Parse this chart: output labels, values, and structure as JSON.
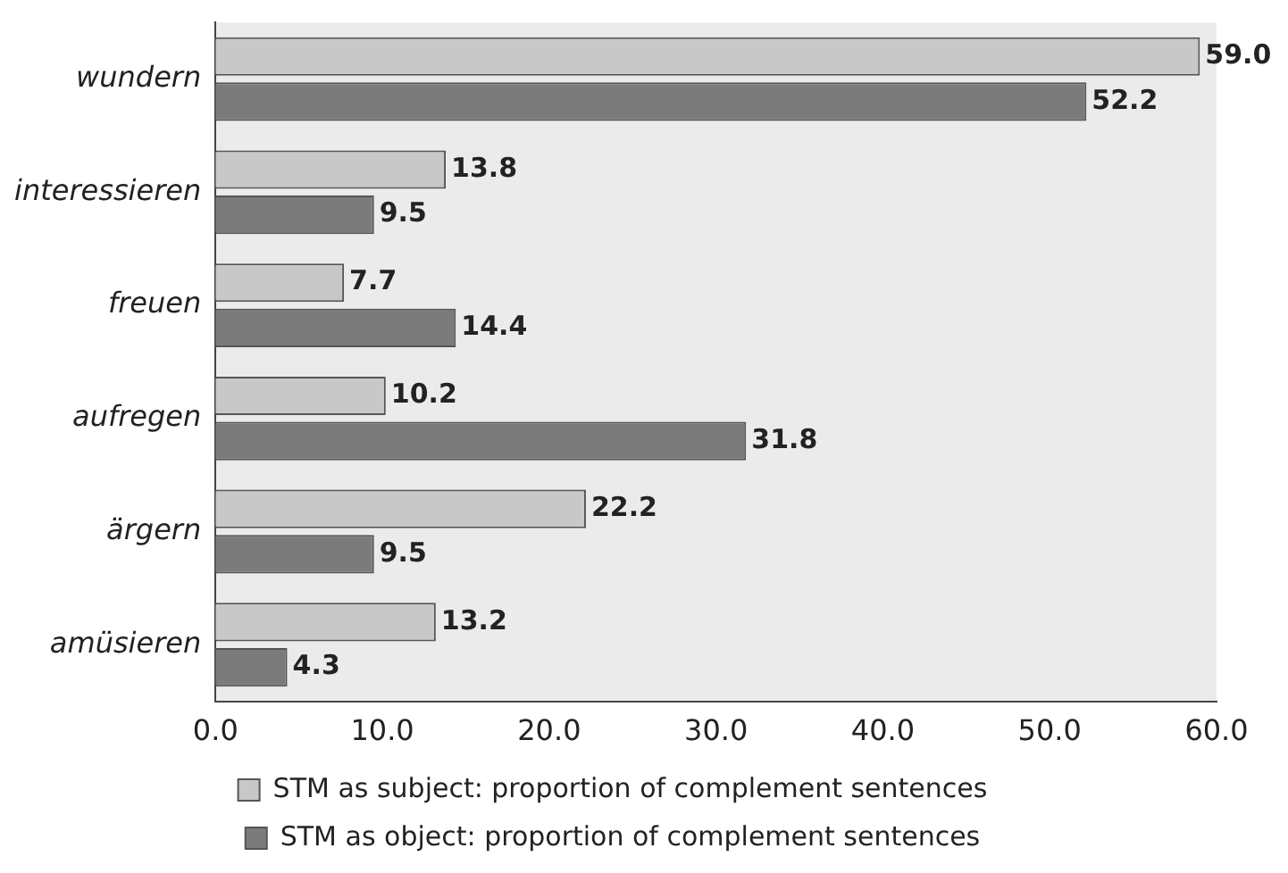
{
  "chart_data": {
    "type": "bar",
    "orientation": "horizontal",
    "categories": [
      "wundern",
      "interessieren",
      "freuen",
      "aufregen",
      "ärgern",
      "amüsieren"
    ],
    "series": [
      {
        "name": "STM as subject: proportion of complement sentences",
        "color": "#c8c8c8",
        "values": [
          59.0,
          13.8,
          7.7,
          10.2,
          22.2,
          13.2
        ],
        "value_labels": [
          "59.0",
          "13.8",
          "7.7",
          "10.2",
          "22.2",
          "13.2"
        ]
      },
      {
        "name": "STM as object: proportion of complement sentences",
        "color": "#7b7b7b",
        "values": [
          52.2,
          9.5,
          14.4,
          31.8,
          9.5,
          4.3
        ],
        "value_labels": [
          "52.2",
          "9.5",
          "14.4",
          "31.8",
          "9.5",
          "4.3"
        ]
      }
    ],
    "xlim": [
      0,
      60
    ],
    "xticks": [
      {
        "value": 0,
        "label": "0.0"
      },
      {
        "value": 10,
        "label": "10.0"
      },
      {
        "value": 20,
        "label": "20.0"
      },
      {
        "value": 30,
        "label": "30.0"
      },
      {
        "value": 40,
        "label": "40.0"
      },
      {
        "value": 50,
        "label": "50.0"
      },
      {
        "value": 60,
        "label": "60.0"
      }
    ],
    "grid": false,
    "legend": "bottom"
  }
}
